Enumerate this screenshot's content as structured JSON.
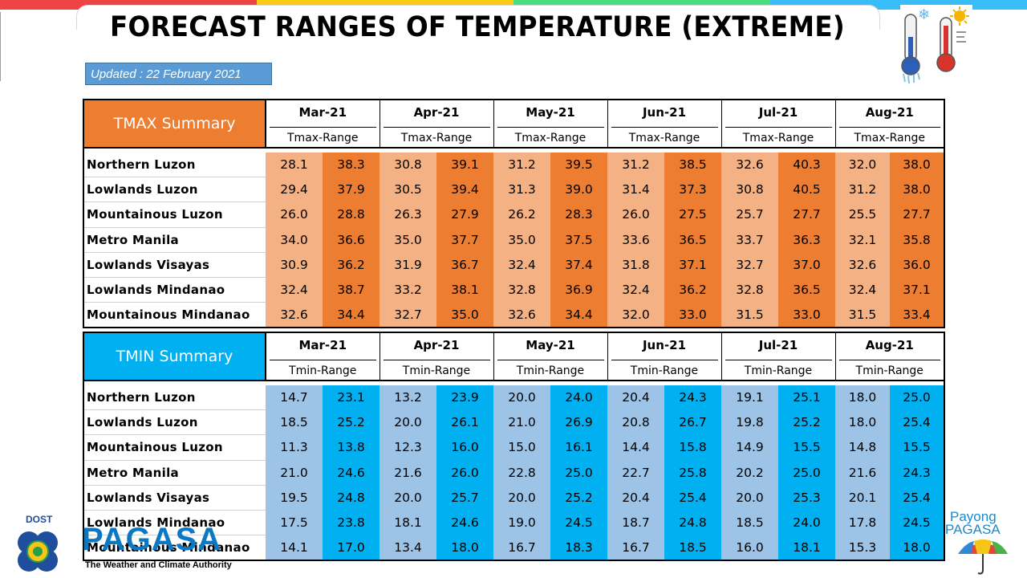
{
  "title": "FORECAST RANGES OF TEMPERATURE (EXTREME)",
  "updated": "Updated :  22 February 2021",
  "colors": {
    "tmax_header": "#ed7d31",
    "tmax_light": "#f4b183",
    "tmax_dark": "#ed7d31",
    "tmin_header": "#00b0f0",
    "tmin_light": "#9dc3e6",
    "tmin_dark": "#00b0f0"
  },
  "months": [
    "Mar-21",
    "Apr-21",
    "May-21",
    "Jun-21",
    "Jul-21",
    "Aug-21"
  ],
  "tmax": {
    "label": "TMAX Summary",
    "range_label": "Tmax-Range",
    "rows": [
      {
        "region": "Northern Luzon",
        "values": [
          "28.1",
          "38.3",
          "30.8",
          "39.1",
          "31.2",
          "39.5",
          "31.2",
          "38.5",
          "32.6",
          "40.3",
          "32.0",
          "38.0"
        ]
      },
      {
        "region": "Lowlands Luzon",
        "values": [
          "29.4",
          "37.9",
          "30.5",
          "39.4",
          "31.3",
          "39.0",
          "31.4",
          "37.3",
          "30.8",
          "40.5",
          "31.2",
          "38.0"
        ]
      },
      {
        "region": "Mountainous Luzon",
        "values": [
          "26.0",
          "28.8",
          "26.3",
          "27.9",
          "26.2",
          "28.3",
          "26.0",
          "27.5",
          "25.7",
          "27.7",
          "25.5",
          "27.7"
        ]
      },
      {
        "region": "Metro Manila",
        "values": [
          "34.0",
          "36.6",
          "35.0",
          "37.7",
          "35.0",
          "37.5",
          "33.6",
          "36.5",
          "33.7",
          "36.3",
          "32.1",
          "35.8"
        ]
      },
      {
        "region": "Lowlands Visayas",
        "values": [
          "30.9",
          "36.2",
          "31.9",
          "36.7",
          "32.4",
          "37.4",
          "31.8",
          "37.1",
          "32.7",
          "37.0",
          "32.6",
          "36.0"
        ]
      },
      {
        "region": "Lowlands Mindanao",
        "values": [
          "32.4",
          "38.7",
          "33.2",
          "38.1",
          "32.8",
          "36.9",
          "32.4",
          "36.2",
          "32.8",
          "36.5",
          "32.4",
          "37.1"
        ]
      },
      {
        "region": "Mountainous Mindanao",
        "values": [
          "32.6",
          "34.4",
          "32.7",
          "35.0",
          "32.6",
          "34.4",
          "32.0",
          "33.0",
          "31.5",
          "33.0",
          "31.5",
          "33.4"
        ]
      }
    ]
  },
  "tmin": {
    "label": "TMIN Summary",
    "range_label": "Tmin-Range",
    "rows": [
      {
        "region": "Northern Luzon",
        "values": [
          "14.7",
          "23.1",
          "13.2",
          "23.9",
          "20.0",
          "24.0",
          "20.4",
          "24.3",
          "19.1",
          "25.1",
          "18.0",
          "25.0"
        ]
      },
      {
        "region": "Lowlands Luzon",
        "values": [
          "18.5",
          "25.2",
          "20.0",
          "26.1",
          "21.0",
          "26.9",
          "20.8",
          "26.7",
          "19.8",
          "25.2",
          "18.0",
          "25.4"
        ]
      },
      {
        "region": "Mountainous Luzon",
        "values": [
          "11.3",
          "13.8",
          "12.3",
          "16.0",
          "15.0",
          "16.1",
          "14.4",
          "15.8",
          "14.9",
          "15.5",
          "14.8",
          "15.5"
        ]
      },
      {
        "region": "Metro Manila",
        "values": [
          "21.0",
          "24.6",
          "21.6",
          "26.0",
          "22.8",
          "25.0",
          "22.7",
          "25.8",
          "20.2",
          "25.0",
          "21.6",
          "24.3"
        ]
      },
      {
        "region": "Lowlands Visayas",
        "values": [
          "19.5",
          "24.8",
          "20.0",
          "25.7",
          "20.0",
          "25.2",
          "20.4",
          "25.4",
          "20.0",
          "25.3",
          "20.1",
          "25.4"
        ]
      },
      {
        "region": "Lowlands Mindanao",
        "values": [
          "17.5",
          "23.8",
          "18.1",
          "24.6",
          "19.0",
          "24.5",
          "18.7",
          "24.8",
          "18.5",
          "24.0",
          "17.8",
          "24.5"
        ]
      },
      {
        "region": "Mountainous Mindanao",
        "values": [
          "14.1",
          "17.0",
          "13.4",
          "18.0",
          "16.7",
          "18.3",
          "16.7",
          "18.5",
          "16.0",
          "18.1",
          "15.3",
          "18.0"
        ]
      }
    ]
  },
  "logos": {
    "left_top": "DOST",
    "left_name": "PAGASA",
    "left_tagline": "The Weather and Climate Authority",
    "right_line1": "Payong",
    "right_line2": "PAGASA"
  }
}
